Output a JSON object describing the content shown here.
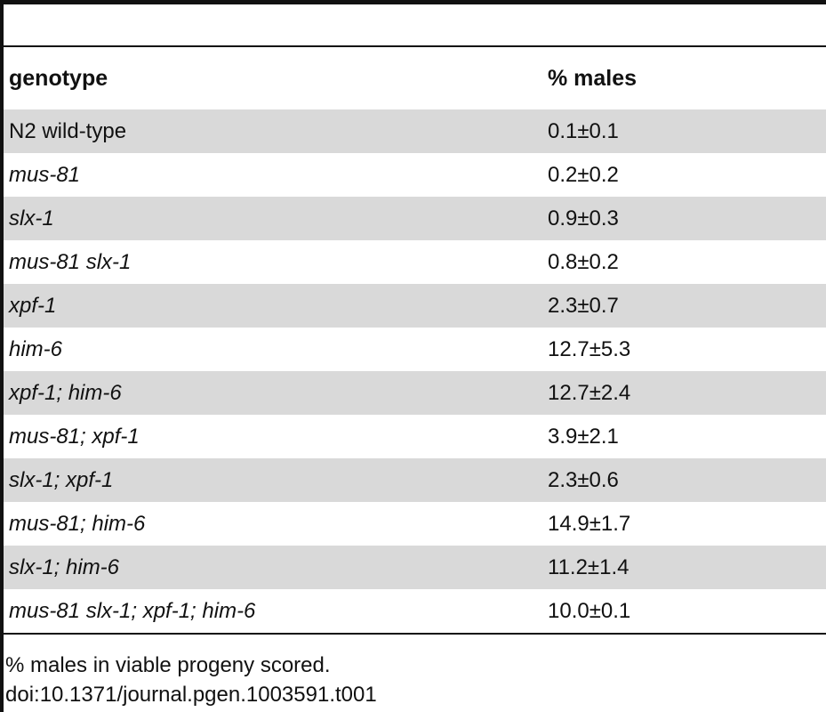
{
  "table": {
    "headers": {
      "genotype": "genotype",
      "males": "% males"
    },
    "rows": [
      {
        "genotype": "N2 wild-type",
        "males": "0.1±0.1",
        "italic": false
      },
      {
        "genotype": "mus-81",
        "males": "0.2±0.2",
        "italic": true
      },
      {
        "genotype": "slx-1",
        "males": "0.9±0.3",
        "italic": true
      },
      {
        "genotype": "mus-81 slx-1",
        "males": "0.8±0.2",
        "italic": true
      },
      {
        "genotype": "xpf-1",
        "males": "2.3±0.7",
        "italic": true
      },
      {
        "genotype": "him-6",
        "males": "12.7±5.3",
        "italic": true
      },
      {
        "genotype": "xpf-1; him-6",
        "males": "12.7±2.4",
        "italic": true
      },
      {
        "genotype": "mus-81; xpf-1",
        "males": "3.9±2.1",
        "italic": true
      },
      {
        "genotype": "slx-1; xpf-1",
        "males": "2.3±0.6",
        "italic": true
      },
      {
        "genotype": "mus-81; him-6",
        "males": "14.9±1.7",
        "italic": true
      },
      {
        "genotype": "slx-1; him-6",
        "males": "11.2±1.4",
        "italic": true
      },
      {
        "genotype": "mus-81 slx-1; xpf-1; him-6",
        "males": "10.0±0.1",
        "italic": true
      }
    ]
  },
  "footnote": {
    "note": "% males in viable progeny scored.",
    "doi": "doi:10.1371/journal.pgen.1003591.t001"
  },
  "colors": {
    "shaded_row": "#d9d9d9",
    "rule": "#111111"
  }
}
